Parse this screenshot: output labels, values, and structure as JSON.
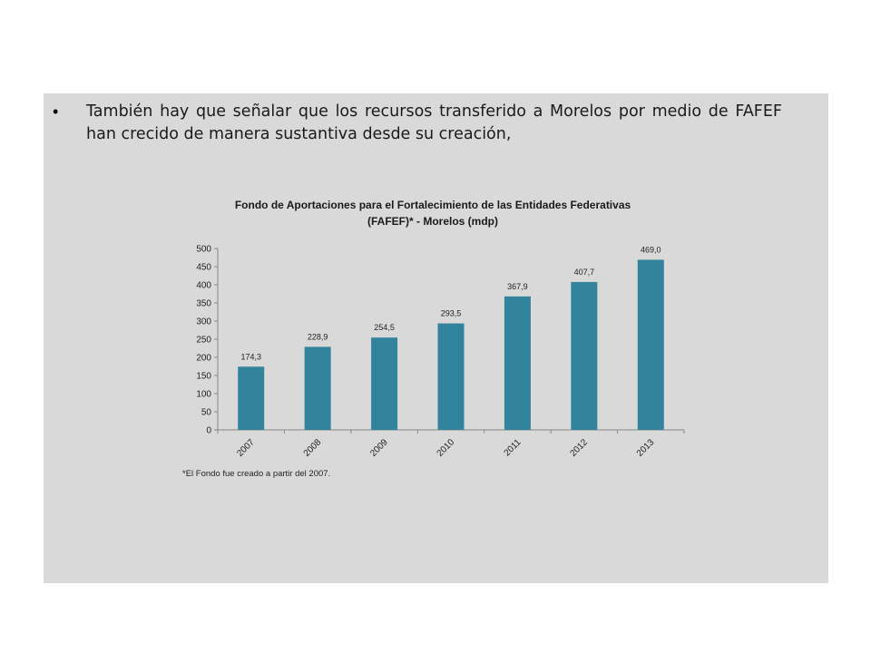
{
  "slide": {
    "bullet": "•",
    "text": "También hay que señalar que los recursos transferido  a Morelos por medio de FAFEF han crecido de manera sustantiva desde su creación,"
  },
  "chart_data": {
    "type": "bar",
    "title": "Fondo de Aportaciones para el Fortalecimiento de las Entidades Federativas",
    "subtitle": "(FAFEF)* - Morelos (mdp)",
    "categories": [
      "2007",
      "2008",
      "2009",
      "2010",
      "2011",
      "2012",
      "2013"
    ],
    "values": [
      174.3,
      228.9,
      254.5,
      293.5,
      367.9,
      407.7,
      469.0
    ],
    "value_labels": [
      "174,3",
      "228,9",
      "254,5",
      "293,5",
      "367,9",
      "407,7",
      "469,0"
    ],
    "ylim": [
      0,
      500
    ],
    "yticks": [
      0,
      50,
      100,
      150,
      200,
      250,
      300,
      350,
      400,
      450,
      500
    ],
    "bar_color": "#31849b",
    "grid": false,
    "legend": "none",
    "note": "*El Fondo fue creado a partir del 2007."
  }
}
